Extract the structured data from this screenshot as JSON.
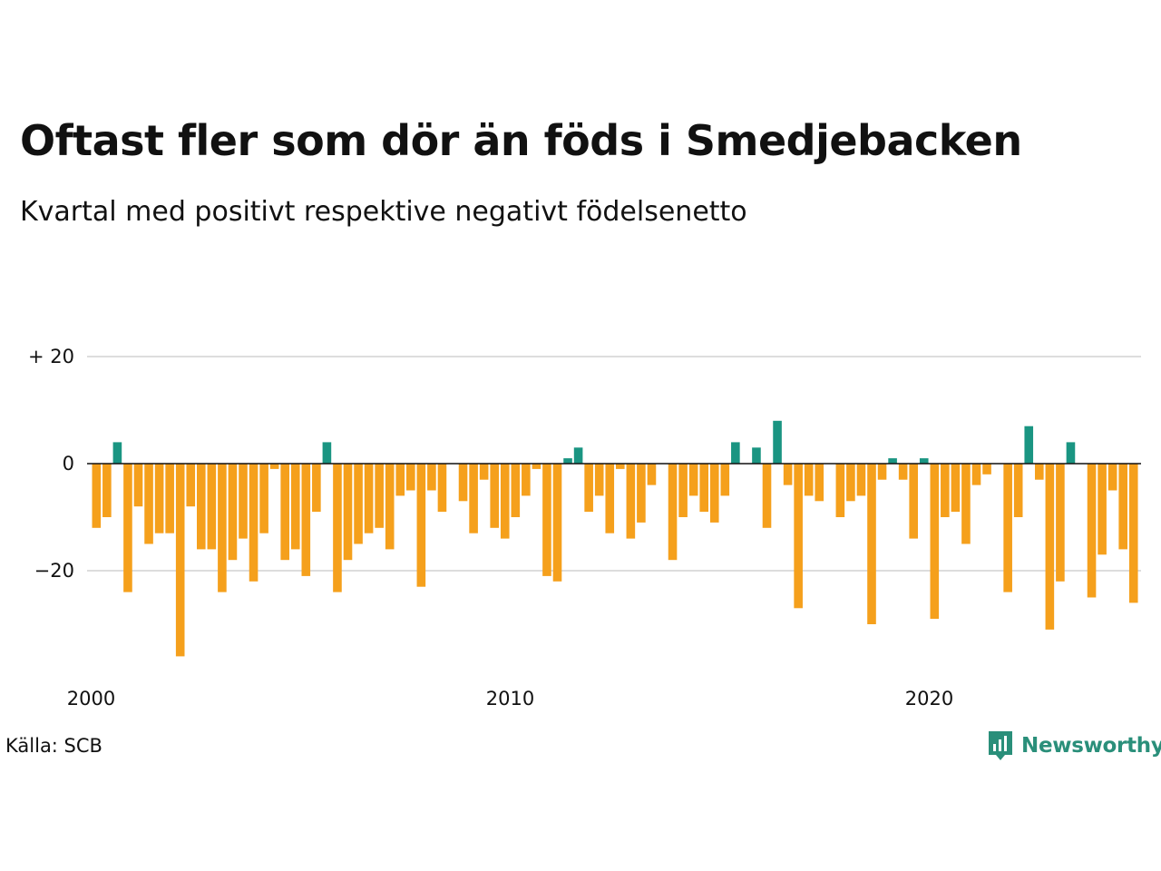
{
  "title": "Oftast fler som dör än föds i Smedjebacken",
  "subtitle": "Kvartal med positivt respektive negativt födelsenetto",
  "source": "Källa: SCB",
  "brand": "Newsworthy",
  "colors": {
    "positive": "#1a9582",
    "negative": "#f5a01c",
    "grid": "#dddddd",
    "zero": "#111111",
    "brand": "#2a8f7a"
  },
  "icons": {
    "brand_logo": "bar-chart-speech-bubble-icon"
  },
  "chart_data": {
    "type": "bar",
    "x_ticks": [
      {
        "year": 2000,
        "label": "2000"
      },
      {
        "year": 2010,
        "label": "2010"
      },
      {
        "year": 2020,
        "label": "2020"
      }
    ],
    "y_ticks": [
      {
        "value": 20,
        "label": "+ 20"
      },
      {
        "value": 0,
        "label": "0"
      },
      {
        "value": -20,
        "label": "−20"
      }
    ],
    "ylim": [
      -37,
      20
    ],
    "start_year": 2000,
    "grid": true,
    "values": [
      -12,
      -10,
      4,
      -24,
      -8,
      -15,
      -13,
      -13,
      -36,
      -8,
      -16,
      -16,
      -24,
      -18,
      -14,
      -22,
      -13,
      -1,
      -18,
      -16,
      -21,
      -9,
      4,
      -24,
      -18,
      -15,
      -13,
      -12,
      -16,
      -6,
      -5,
      -23,
      -5,
      -9,
      0,
      -7,
      -13,
      -3,
      -12,
      -14,
      -10,
      -6,
      -1,
      -21,
      -22,
      1,
      3,
      -9,
      -6,
      -13,
      -1,
      -14,
      -11,
      -4,
      0,
      -18,
      -10,
      -6,
      -9,
      -11,
      -6,
      4,
      0,
      3,
      -12,
      8,
      -4,
      -27,
      -6,
      -7,
      0,
      -10,
      -7,
      -6,
      -30,
      -3,
      1,
      -3,
      -14,
      1,
      -29,
      -10,
      -9,
      -15,
      -4,
      -2,
      0,
      -24,
      -10,
      7,
      -3,
      -31,
      -22,
      4,
      0,
      -25,
      -17,
      -5,
      -16,
      -26
    ]
  }
}
